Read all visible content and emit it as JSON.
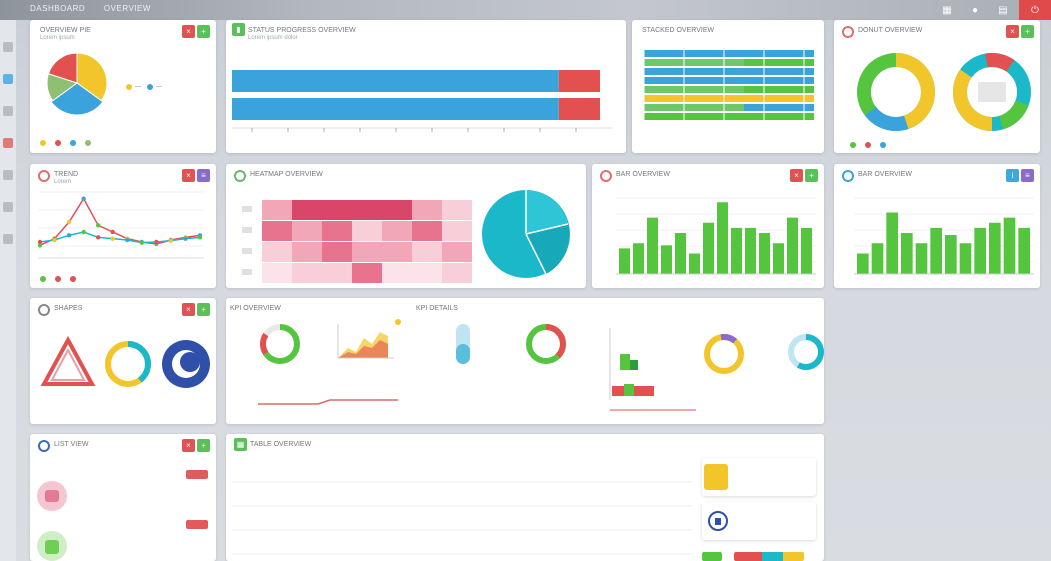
{
  "header": {
    "brand_items": [
      "DASHBOARD",
      "OVERVIEW"
    ],
    "icons": [
      "grid-icon",
      "user-icon",
      "file-icon",
      "power-icon"
    ]
  },
  "colors": {
    "blue": "#3aa3dc",
    "green": "#55c43e",
    "red": "#e25050",
    "yellow": "#f2c52a",
    "pink": "#d9466a",
    "teal": "#1ab8c9"
  },
  "cards": {
    "pie1": {
      "title": "OVERVIEW PIE",
      "sub": "Lorem ipsum"
    },
    "hbar": {
      "title": "STATUS PROGRESS OVERVIEW",
      "sub": "Lorem ipsum dolor"
    },
    "stacked": {
      "title": "STACKED OVERVIEW"
    },
    "donuts": {
      "title": "DONUT OVERVIEW"
    },
    "line": {
      "title": "TREND",
      "sub": "Lorem"
    },
    "heat": {
      "title": "HEATMAP OVERVIEW"
    },
    "bars1": {
      "title": "BAR OVERVIEW"
    },
    "bars2": {
      "title": "BAR OVERVIEW"
    },
    "shapes": {
      "title": "SHAPES"
    },
    "kpis": {
      "title": "KPI OVERVIEW",
      "title2": "KPI DETAILS"
    },
    "list": {
      "title": "LIST VIEW"
    },
    "table": {
      "title": "TABLE OVERVIEW"
    }
  },
  "chart_data": [
    {
      "type": "pie",
      "values": [
        35,
        30,
        15,
        20
      ]
    },
    {
      "type": "bar",
      "orientation": "horizontal",
      "series": [
        {
          "values": [
            86,
            86
          ]
        },
        {
          "values": [
            14,
            14
          ]
        }
      ]
    },
    {
      "type": "line",
      "x": [
        1,
        2,
        3,
        4,
        5,
        6,
        7,
        8,
        9,
        10,
        11,
        12
      ],
      "series": [
        {
          "values": [
            10,
            20,
            45,
            80,
            40,
            30,
            20,
            15,
            12,
            18,
            22,
            25
          ]
        },
        {
          "values": [
            15,
            18,
            25,
            30,
            22,
            20,
            18,
            14,
            15,
            17,
            20,
            22
          ]
        }
      ]
    },
    {
      "type": "bar",
      "values": [
        25,
        30,
        55,
        28,
        40,
        20,
        50,
        70,
        45,
        45,
        40,
        30,
        55,
        45
      ]
    },
    {
      "type": "bar",
      "values": [
        20,
        30,
        60,
        40,
        30,
        45,
        38,
        30,
        45,
        50,
        55,
        45
      ]
    }
  ]
}
